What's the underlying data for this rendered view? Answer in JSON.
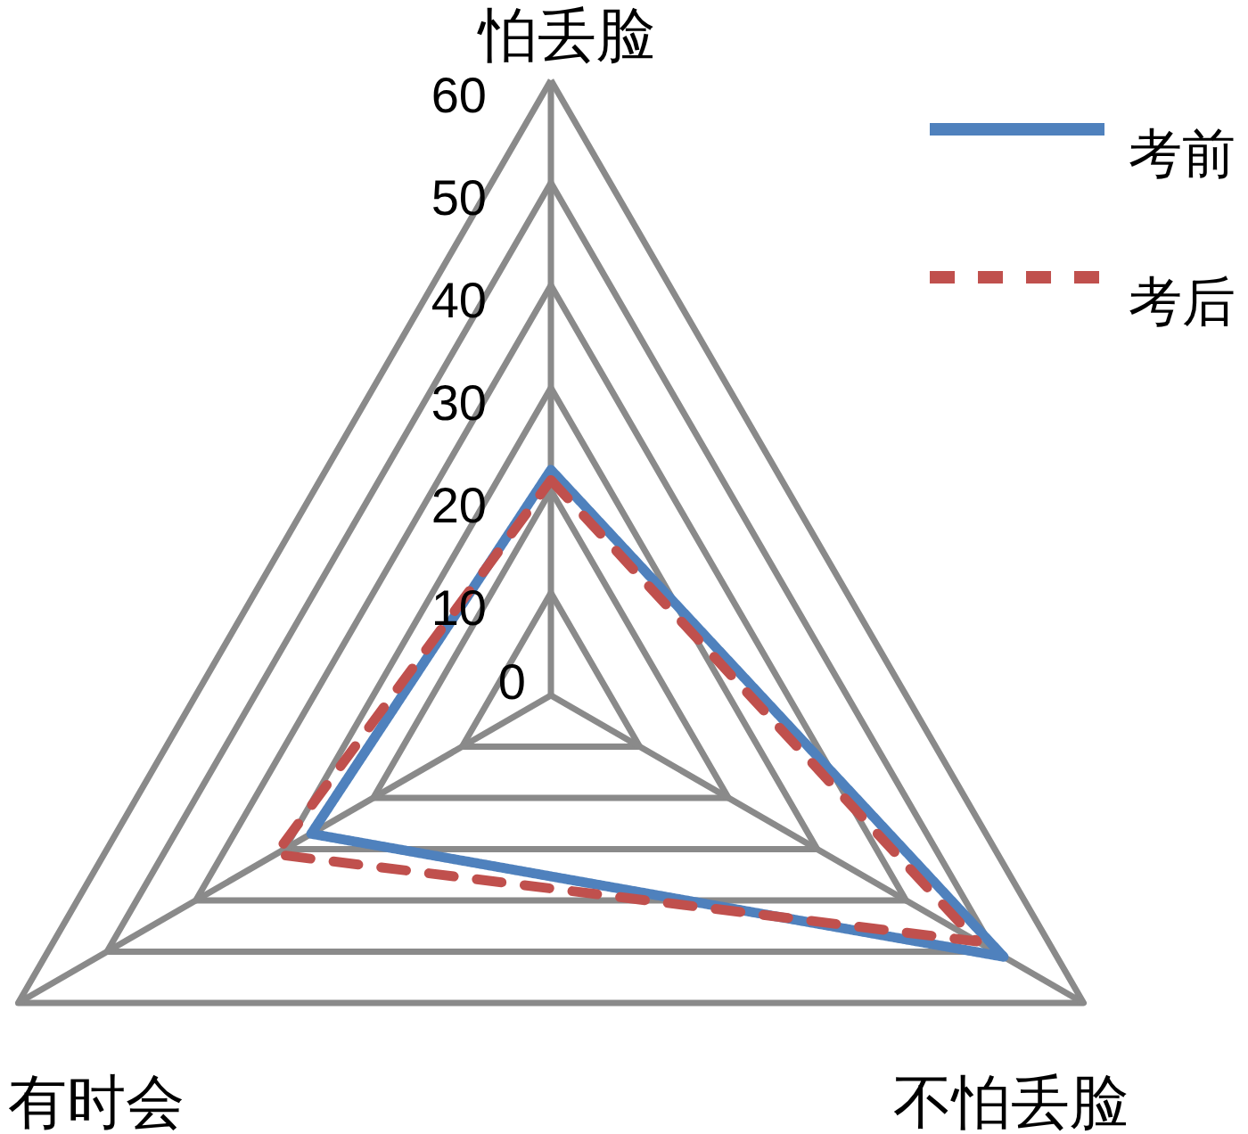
{
  "chart_data": {
    "type": "radar",
    "categories": [
      "怕丢脸",
      "不怕丢脸",
      "有时会"
    ],
    "series": [
      {
        "name": "考前",
        "color": "#4f81bd",
        "values": [
          22,
          51,
          27
        ],
        "line_style": "solid"
      },
      {
        "name": "考后",
        "color": "#c0504d",
        "values": [
          21,
          48,
          31
        ],
        "line_style": "dashed"
      }
    ],
    "ylim": [
      0,
      60
    ],
    "yticks": [
      0,
      10,
      20,
      30,
      40,
      50,
      60
    ],
    "grid": true,
    "legend": "top right"
  }
}
